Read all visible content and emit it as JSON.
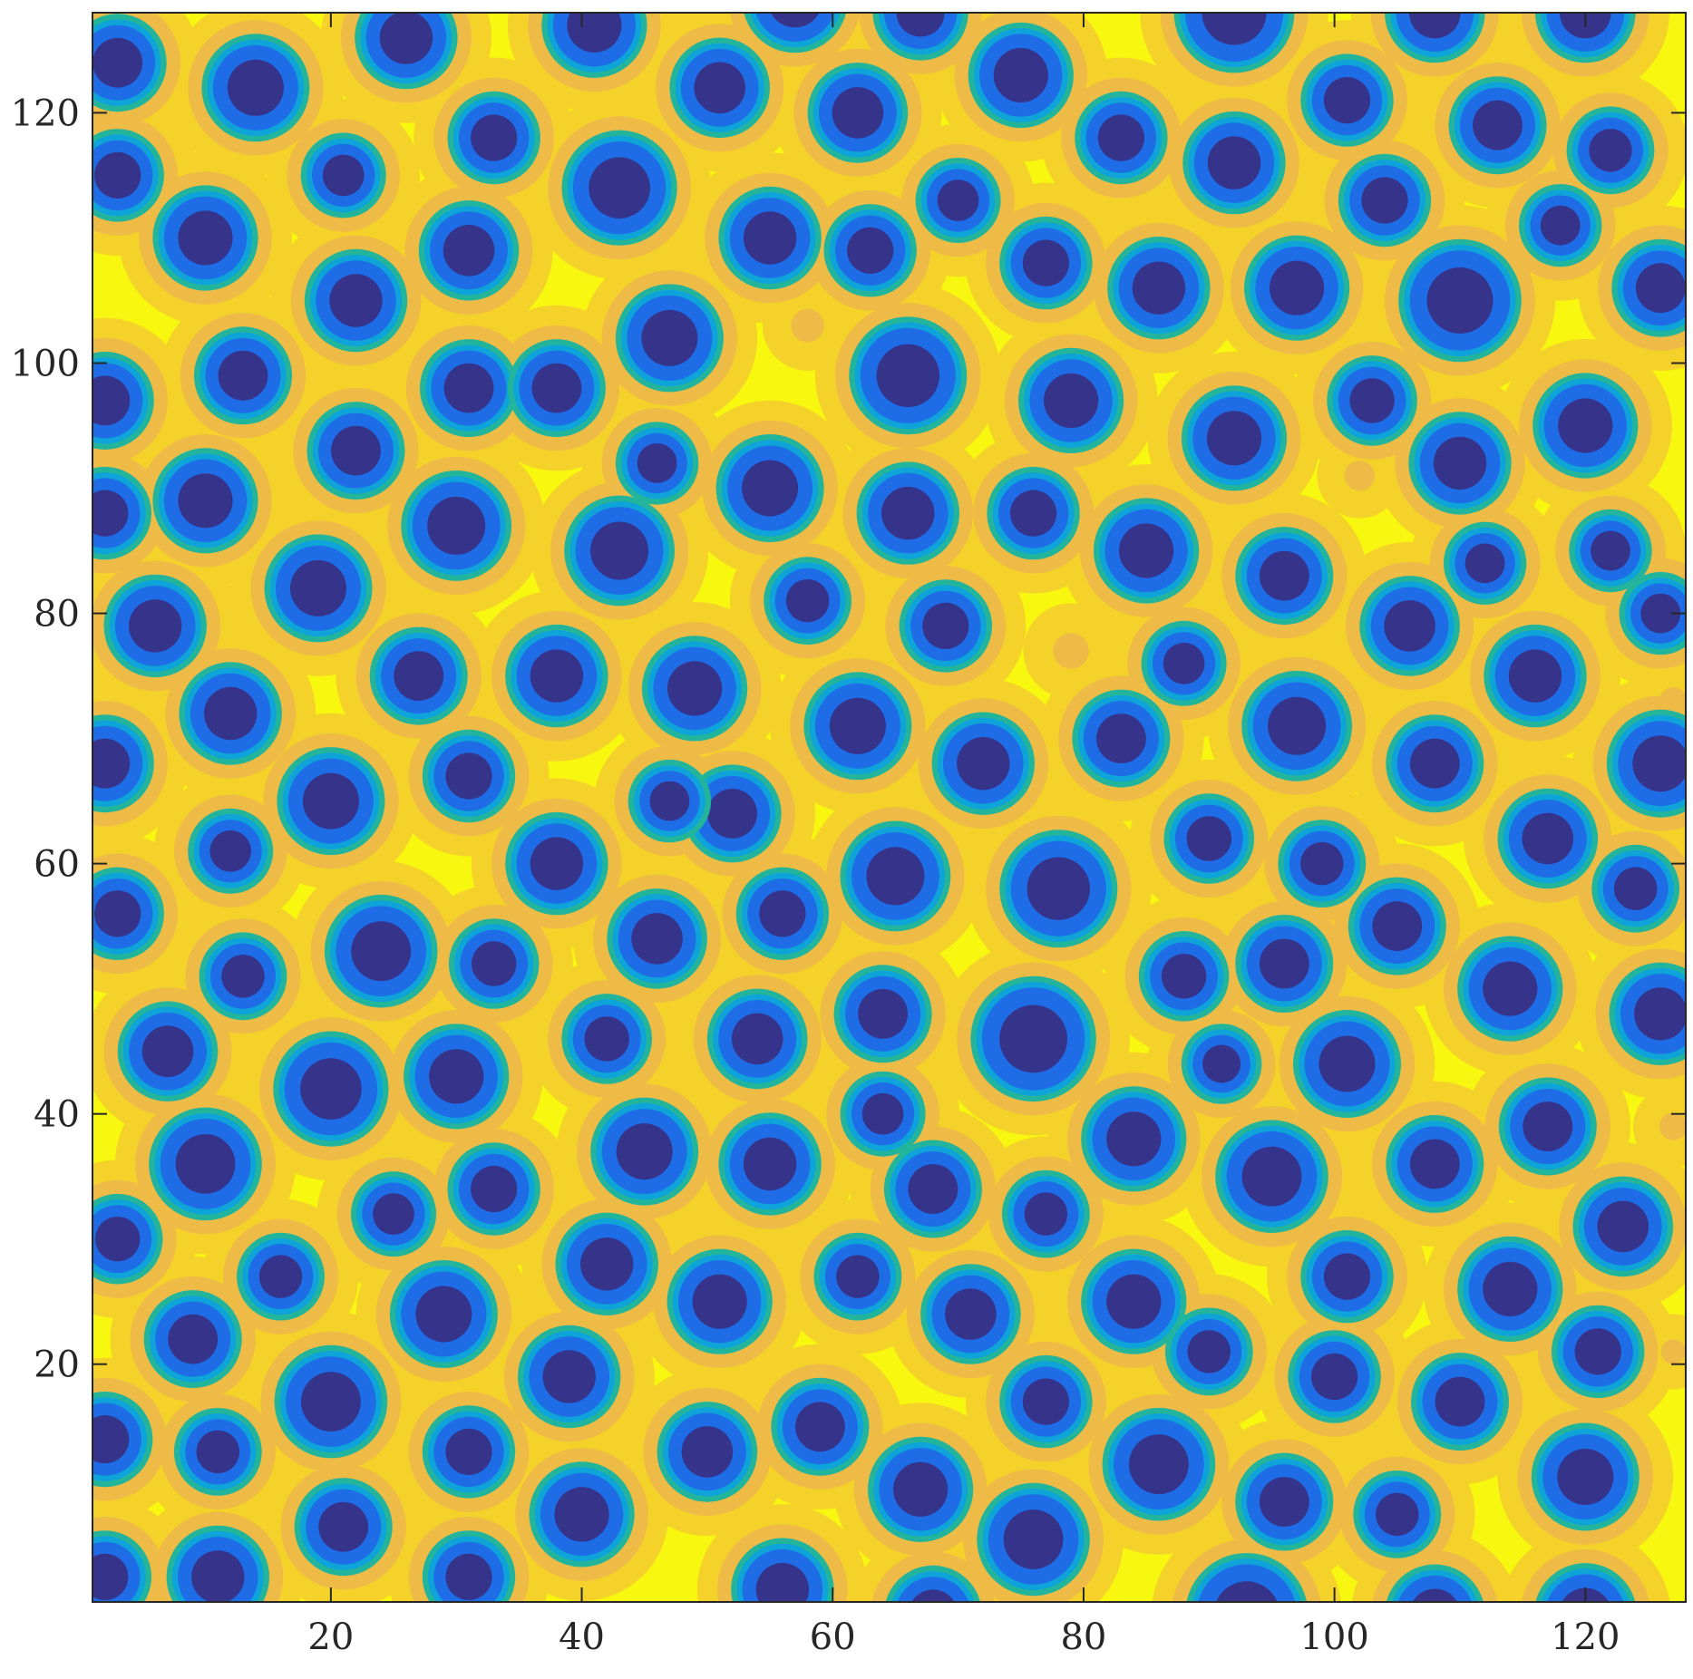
{
  "chart_data": {
    "type": "contour",
    "xlim": [
      1,
      128
    ],
    "ylim": [
      1,
      128
    ],
    "x_ticks": [
      20,
      40,
      60,
      80,
      100,
      120
    ],
    "y_ticks": [
      20,
      40,
      60,
      80,
      100,
      120
    ],
    "x_tick_labels": [
      "20",
      "40",
      "60",
      "80",
      "100",
      "120"
    ],
    "y_tick_labels": [
      "20",
      "40",
      "60",
      "80",
      "100",
      "120"
    ],
    "grid": false,
    "colors": {
      "background": "#F7F710",
      "halo_outer": "#F5D22A",
      "halo_inner": "#EFBB47",
      "ring_green": "#22B59C",
      "ring_cyan": "#0EA3D9",
      "ring_blue": "#1E6CE6",
      "core": "#35338A"
    },
    "spots": [
      [
        3,
        124,
        3.0
      ],
      [
        26,
        126,
        3.2
      ],
      [
        41,
        127,
        3.3
      ],
      [
        57,
        129,
        3.3
      ],
      [
        67,
        128,
        2.9
      ],
      [
        92,
        128,
        3.9
      ],
      [
        108,
        128,
        3.1
      ],
      [
        120,
        128,
        3.1
      ],
      [
        14,
        122,
        3.4
      ],
      [
        51,
        122,
        3.1
      ],
      [
        75,
        123,
        3.3
      ],
      [
        62,
        120,
        3.1
      ],
      [
        101,
        121,
        2.8
      ],
      [
        113,
        119,
        3.0
      ],
      [
        122,
        117,
        2.6
      ],
      [
        3,
        115,
        2.8
      ],
      [
        21,
        115,
        2.5
      ],
      [
        33,
        118,
        2.8
      ],
      [
        83,
        118,
        2.8
      ],
      [
        92,
        116,
        3.2
      ],
      [
        43,
        114,
        3.7
      ],
      [
        70,
        113,
        2.5
      ],
      [
        104,
        113,
        2.8
      ],
      [
        118,
        111,
        2.4
      ],
      [
        10,
        110,
        3.3
      ],
      [
        31,
        109,
        3.1
      ],
      [
        55,
        110,
        3.2
      ],
      [
        63,
        109,
        2.8
      ],
      [
        77,
        108,
        2.8
      ],
      [
        86,
        106,
        3.2
      ],
      [
        97,
        106,
        3.3
      ],
      [
        110,
        105,
        4.0
      ],
      [
        126,
        106,
        3.0
      ],
      [
        22,
        105,
        3.2
      ],
      [
        47,
        102,
        3.4
      ],
      [
        66,
        99,
        3.8
      ],
      [
        13,
        99,
        3.0
      ],
      [
        31,
        98,
        3.0
      ],
      [
        38,
        98,
        3.0
      ],
      [
        79,
        97,
        3.3
      ],
      [
        2,
        97,
        3.0
      ],
      [
        103,
        97,
        2.7
      ],
      [
        120,
        95,
        3.3
      ],
      [
        92,
        94,
        3.3
      ],
      [
        22,
        93,
        3.0
      ],
      [
        46,
        92,
        2.4
      ],
      [
        55,
        90,
        3.4
      ],
      [
        10,
        89,
        3.3
      ],
      [
        66,
        88,
        3.2
      ],
      [
        76,
        88,
        2.8
      ],
      [
        110,
        92,
        3.2
      ],
      [
        2,
        88,
        2.8
      ],
      [
        30,
        87,
        3.5
      ],
      [
        43,
        85,
        3.5
      ],
      [
        85,
        85,
        3.3
      ],
      [
        96,
        83,
        3.0
      ],
      [
        112,
        84,
        2.4
      ],
      [
        122,
        85,
        2.4
      ],
      [
        19,
        82,
        3.4
      ],
      [
        58,
        81,
        2.6
      ],
      [
        6,
        79,
        3.2
      ],
      [
        69,
        79,
        2.8
      ],
      [
        106,
        79,
        3.1
      ],
      [
        126,
        80,
        2.4
      ],
      [
        27,
        75,
        3.0
      ],
      [
        38,
        75,
        3.2
      ],
      [
        49,
        74,
        3.3
      ],
      [
        88,
        76,
        2.5
      ],
      [
        116,
        75,
        3.2
      ],
      [
        12,
        72,
        3.2
      ],
      [
        62,
        71,
        3.4
      ],
      [
        97,
        71,
        3.5
      ],
      [
        83,
        70,
        3.0
      ],
      [
        72,
        68,
        3.2
      ],
      [
        108,
        68,
        3.0
      ],
      [
        2,
        68,
        3.0
      ],
      [
        126,
        68,
        3.4
      ],
      [
        31,
        67,
        2.8
      ],
      [
        20,
        65,
        3.4
      ],
      [
        52,
        64,
        3.0
      ],
      [
        47,
        65,
        2.4
      ],
      [
        12,
        61,
        2.5
      ],
      [
        38,
        60,
        3.2
      ],
      [
        65,
        59,
        3.5
      ],
      [
        78,
        58,
        3.8
      ],
      [
        90,
        62,
        2.7
      ],
      [
        99,
        60,
        2.6
      ],
      [
        117,
        62,
        3.1
      ],
      [
        124,
        58,
        2.6
      ],
      [
        3,
        56,
        2.8
      ],
      [
        56,
        56,
        2.8
      ],
      [
        105,
        55,
        3.0
      ],
      [
        24,
        53,
        3.6
      ],
      [
        46,
        54,
        3.1
      ],
      [
        33,
        52,
        2.7
      ],
      [
        13,
        51,
        2.6
      ],
      [
        88,
        51,
        2.7
      ],
      [
        96,
        52,
        3.0
      ],
      [
        114,
        50,
        3.3
      ],
      [
        64,
        48,
        3.0
      ],
      [
        126,
        48,
        3.2
      ],
      [
        7,
        45,
        3.1
      ],
      [
        42,
        46,
        2.7
      ],
      [
        54,
        46,
        3.1
      ],
      [
        76,
        46,
        4.1
      ],
      [
        91,
        44,
        2.3
      ],
      [
        101,
        44,
        3.4
      ],
      [
        20,
        42,
        3.7
      ],
      [
        30,
        43,
        3.3
      ],
      [
        64,
        40,
        2.5
      ],
      [
        117,
        39,
        3.0
      ],
      [
        10,
        36,
        3.6
      ],
      [
        45,
        37,
        3.4
      ],
      [
        55,
        36,
        3.2
      ],
      [
        84,
        38,
        3.3
      ],
      [
        95,
        35,
        3.6
      ],
      [
        108,
        36,
        3.0
      ],
      [
        33,
        34,
        2.8
      ],
      [
        68,
        34,
        3.0
      ],
      [
        25,
        32,
        2.5
      ],
      [
        77,
        32,
        2.6
      ],
      [
        3,
        30,
        2.7
      ],
      [
        123,
        31,
        3.1
      ],
      [
        42,
        28,
        3.2
      ],
      [
        16,
        27,
        2.6
      ],
      [
        62,
        27,
        2.6
      ],
      [
        101,
        27,
        2.8
      ],
      [
        114,
        26,
        3.3
      ],
      [
        51,
        25,
        3.3
      ],
      [
        84,
        25,
        3.3
      ],
      [
        71,
        24,
        3.1
      ],
      [
        29,
        24,
        3.4
      ],
      [
        9,
        22,
        3.0
      ],
      [
        90,
        21,
        2.6
      ],
      [
        121,
        21,
        2.8
      ],
      [
        39,
        19,
        3.2
      ],
      [
        100,
        19,
        2.8
      ],
      [
        20,
        17,
        3.6
      ],
      [
        77,
        17,
        2.8
      ],
      [
        110,
        17,
        3.0
      ],
      [
        2,
        14,
        2.9
      ],
      [
        59,
        15,
        3.0
      ],
      [
        50,
        13,
        3.1
      ],
      [
        11,
        13,
        2.6
      ],
      [
        31,
        13,
        2.8
      ],
      [
        86,
        12,
        3.6
      ],
      [
        120,
        11,
        3.4
      ],
      [
        67,
        10,
        3.3
      ],
      [
        96,
        9,
        3.0
      ],
      [
        105,
        8,
        2.6
      ],
      [
        40,
        8,
        3.3
      ],
      [
        21,
        7,
        3.0
      ],
      [
        76,
        6,
        3.6
      ],
      [
        2,
        3,
        2.8
      ],
      [
        11,
        3,
        3.2
      ],
      [
        31,
        3,
        2.8
      ],
      [
        56,
        2,
        3.2
      ],
      [
        68,
        0,
        3.0
      ],
      [
        93,
        0,
        4.0
      ],
      [
        108,
        0,
        3.1
      ],
      [
        120,
        0,
        3.2
      ]
    ],
    "faint_spots": [
      [
        79,
        77,
        2.6
      ],
      [
        102,
        91,
        2.2
      ],
      [
        58,
        103,
        2.4
      ],
      [
        8,
        21,
        2.0
      ],
      [
        127,
        21,
        1.8
      ],
      [
        127,
        39,
        2.0
      ],
      [
        127,
        73,
        2.0
      ]
    ]
  }
}
